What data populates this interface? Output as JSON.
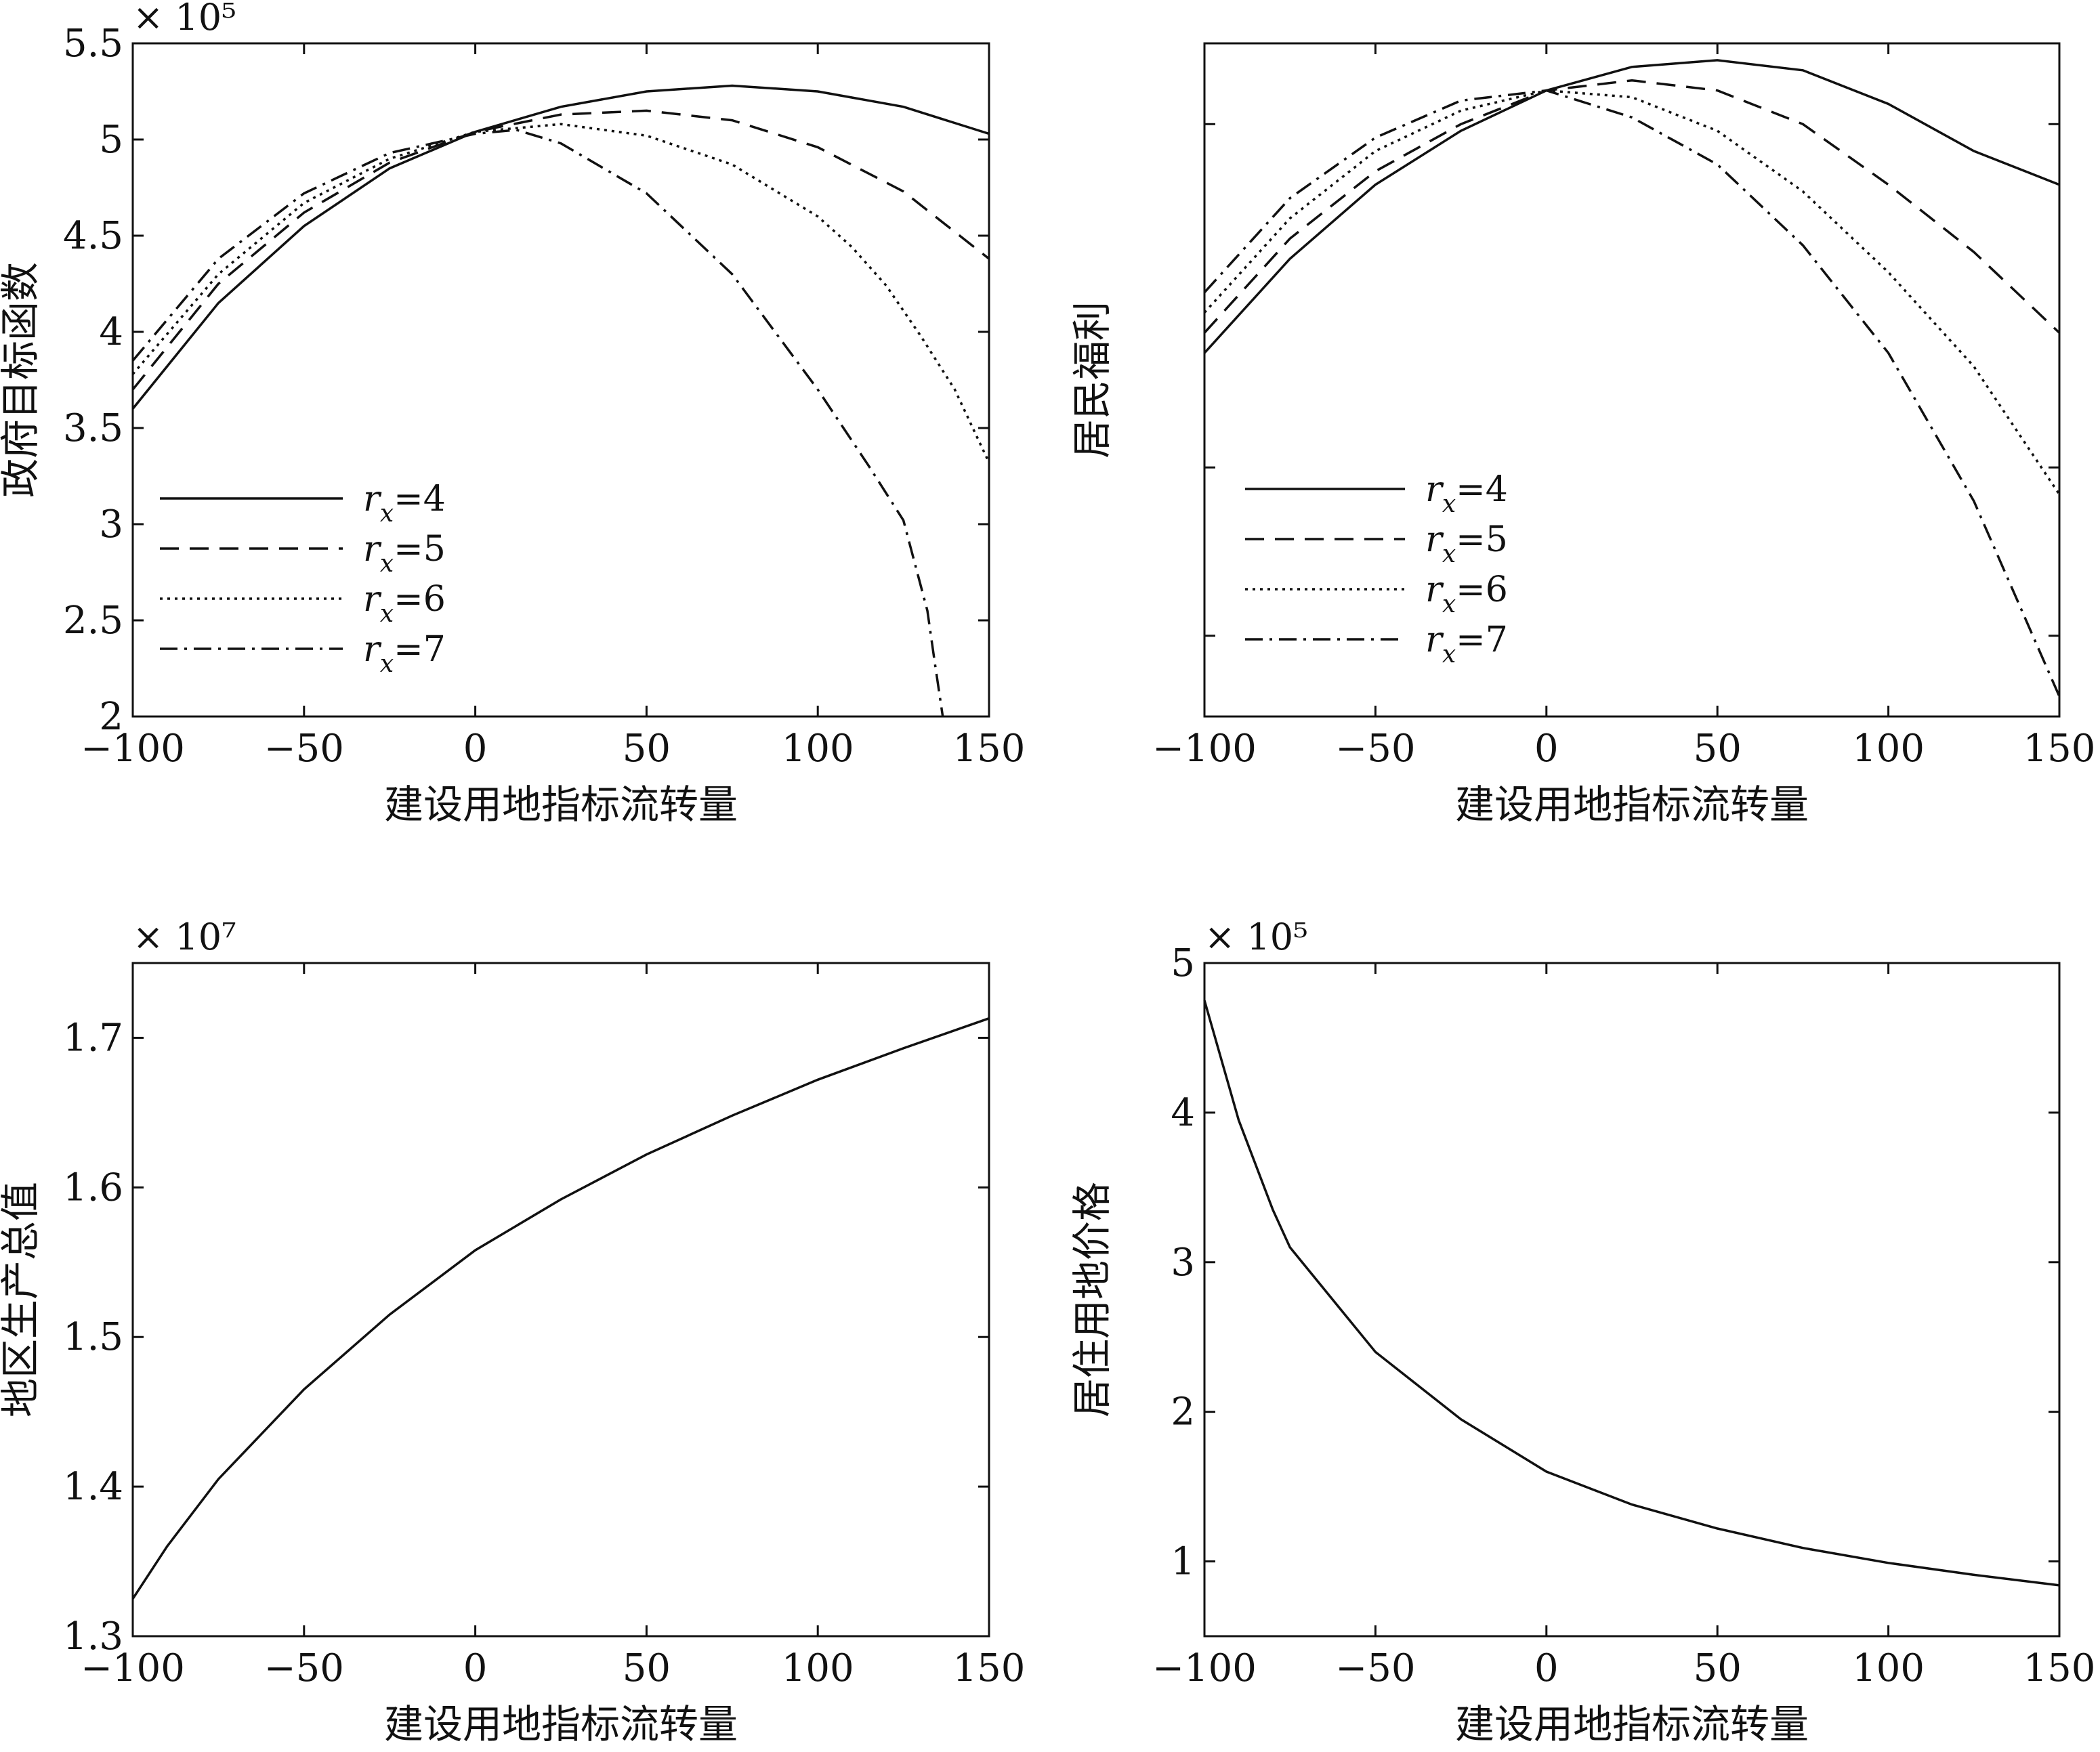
{
  "chart_data": [
    {
      "id": "gov",
      "type": "line",
      "title": "",
      "xlabel": "建设用地指标流转量",
      "ylabel": "政府目标函数",
      "multiplier": "× 10⁵",
      "xlim": [
        -100,
        150
      ],
      "ylim": [
        2,
        5.5
      ],
      "xticks": [
        -100,
        -50,
        0,
        50,
        100,
        150
      ],
      "xtick_labels": [
        "−100",
        "−50",
        "0",
        "50",
        "100",
        "150"
      ],
      "yticks": [
        2,
        2.5,
        3,
        3.5,
        4,
        4.5,
        5,
        5.5
      ],
      "ytick_labels": [
        "2",
        "2.5",
        "3",
        "3.5",
        "4",
        "4.5",
        "5",
        "5.5"
      ],
      "legend_position": "lower-left",
      "series": [
        {
          "name": "rx=4",
          "var": "r",
          "sub": "x",
          "eq": "=4",
          "dash": "solid",
          "x": [
            -100,
            -75,
            -50,
            -25,
            0,
            25,
            50,
            75,
            100,
            125,
            150
          ],
          "y": [
            3.6,
            4.15,
            4.55,
            4.85,
            5.04,
            5.17,
            5.25,
            5.28,
            5.25,
            5.17,
            5.03
          ]
        },
        {
          "name": "rx=5",
          "var": "r",
          "sub": "x",
          "eq": "=5",
          "dash": "dash",
          "x": [
            -100,
            -75,
            -50,
            -25,
            0,
            25,
            50,
            75,
            100,
            125,
            150
          ],
          "y": [
            3.7,
            4.25,
            4.62,
            4.88,
            5.04,
            5.13,
            5.15,
            5.1,
            4.96,
            4.73,
            4.38
          ]
        },
        {
          "name": "rx=6",
          "var": "r",
          "sub": "x",
          "eq": "=6",
          "dash": "dot",
          "x": [
            -100,
            -75,
            -50,
            -25,
            0,
            25,
            50,
            75,
            100,
            110,
            120,
            130,
            140,
            150
          ],
          "y": [
            3.78,
            4.3,
            4.67,
            4.9,
            5.04,
            5.08,
            5.02,
            4.87,
            4.6,
            4.44,
            4.24,
            3.98,
            3.7,
            3.32
          ]
        },
        {
          "name": "rx=7",
          "var": "r",
          "sub": "x",
          "eq": "=7",
          "dash": "dashdot",
          "x": [
            -100,
            -75,
            -50,
            -25,
            0,
            12,
            25,
            50,
            75,
            100,
            115,
            125,
            132,
            134,
            136.5
          ],
          "y": [
            3.85,
            4.38,
            4.72,
            4.93,
            5.03,
            5.05,
            4.98,
            4.72,
            4.3,
            3.7,
            3.3,
            3.02,
            2.55,
            2.3,
            2.0
          ]
        }
      ]
    },
    {
      "id": "welfare",
      "type": "line",
      "title": "",
      "xlabel": "建设用地指标流转量",
      "ylabel": "居民福利",
      "multiplier": "",
      "xlim": [
        -100,
        150
      ],
      "ylim": [
        0,
        100
      ],
      "xticks": [
        -100,
        -50,
        0,
        50,
        100,
        150
      ],
      "xtick_labels": [
        "−100",
        "−50",
        "0",
        "50",
        "100",
        "150"
      ],
      "yticks": [
        12,
        37,
        88
      ],
      "ytick_labels": [
        "",
        "",
        ""
      ],
      "legend_position": "lower-left",
      "series": [
        {
          "name": "rx=4",
          "var": "r",
          "sub": "x",
          "eq": "=4",
          "dash": "solid",
          "x": [
            -100,
            -75,
            -50,
            -25,
            0,
            25,
            50,
            75,
            100,
            125,
            150
          ],
          "y": [
            54,
            68,
            79,
            87,
            93,
            96.5,
            97.5,
            96,
            91,
            84,
            79
          ]
        },
        {
          "name": "rx=5",
          "var": "r",
          "sub": "x",
          "eq": "=5",
          "dash": "dash",
          "x": [
            -100,
            -75,
            -50,
            -25,
            0,
            25,
            50,
            75,
            100,
            125,
            150
          ],
          "y": [
            57,
            71,
            81,
            88,
            93,
            94.5,
            93,
            88,
            79,
            69,
            57
          ]
        },
        {
          "name": "rx=6",
          "var": "r",
          "sub": "x",
          "eq": "=6",
          "dash": "dot",
          "x": [
            -100,
            -75,
            -50,
            -25,
            0,
            25,
            50,
            75,
            100,
            125,
            150
          ],
          "y": [
            60,
            74,
            84,
            90,
            93,
            92,
            87,
            78,
            66,
            52,
            33
          ]
        },
        {
          "name": "rx=7",
          "var": "r",
          "sub": "x",
          "eq": "=7",
          "dash": "dashdot",
          "x": [
            -100,
            -75,
            -50,
            -25,
            0,
            25,
            50,
            75,
            100,
            125,
            150
          ],
          "y": [
            63,
            77,
            86,
            91.5,
            93,
            89,
            82,
            70,
            54,
            32,
            3
          ]
        }
      ]
    },
    {
      "id": "gdp",
      "type": "line",
      "title": "",
      "xlabel": "建设用地指标流转量",
      "ylabel": "地区生产总值",
      "multiplier": "× 10⁷",
      "xlim": [
        -100,
        150
      ],
      "ylim": [
        1.3,
        1.75
      ],
      "xticks": [
        -100,
        -50,
        0,
        50,
        100,
        150
      ],
      "xtick_labels": [
        "−100",
        "−50",
        "0",
        "50",
        "100",
        "150"
      ],
      "yticks": [
        1.3,
        1.4,
        1.5,
        1.6,
        1.7
      ],
      "ytick_labels": [
        "1.3",
        "1.4",
        "1.5",
        "1.6",
        "1.7"
      ],
      "legend_position": "none",
      "series": [
        {
          "name": "",
          "dash": "solid",
          "x": [
            -100,
            -90,
            -75,
            -50,
            -25,
            0,
            25,
            50,
            75,
            100,
            125,
            150
          ],
          "y": [
            1.325,
            1.36,
            1.405,
            1.465,
            1.515,
            1.558,
            1.592,
            1.622,
            1.648,
            1.672,
            1.693,
            1.713
          ]
        }
      ]
    },
    {
      "id": "price",
      "type": "line",
      "title": "",
      "xlabel": "建设用地指标流转量",
      "ylabel": "居住用地价格",
      "multiplier": "× 10⁵",
      "xlim": [
        -100,
        150
      ],
      "ylim": [
        0.5,
        5
      ],
      "xticks": [
        -100,
        -50,
        0,
        50,
        100,
        150
      ],
      "xtick_labels": [
        "−100",
        "−50",
        "0",
        "50",
        "100",
        "150"
      ],
      "yticks": [
        1,
        2,
        3,
        4,
        5
      ],
      "ytick_labels": [
        "1",
        "2",
        "3",
        "4",
        "5"
      ],
      "legend_position": "none",
      "series": [
        {
          "name": "",
          "dash": "solid",
          "x": [
            -100,
            -90,
            -80,
            -75,
            -60,
            -50,
            -25,
            0,
            25,
            50,
            75,
            100,
            125,
            150
          ],
          "y": [
            4.75,
            3.95,
            3.35,
            3.1,
            2.68,
            2.4,
            1.95,
            1.6,
            1.38,
            1.22,
            1.09,
            0.99,
            0.91,
            0.84
          ]
        }
      ]
    }
  ]
}
